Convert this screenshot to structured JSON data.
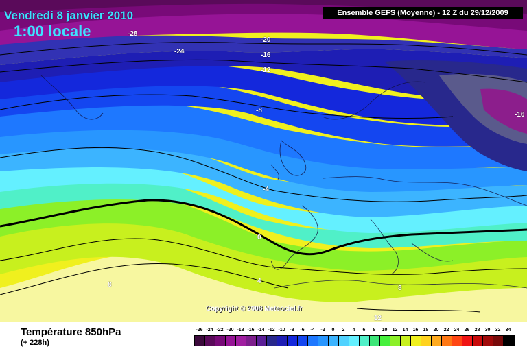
{
  "header": {
    "date": "Vendredi 8 janvier 2010",
    "time": "1:00 locale",
    "model": "Ensemble GEFS (Moyenne)  - 12 Z du 29/12/2009"
  },
  "copyright": "Copyright © 2008 Meteociel.fr",
  "isotherm_labels": [
    "-28",
    "-24",
    "-20",
    "-16",
    "-12",
    "-8",
    "-16",
    "-4",
    "0",
    "4",
    "8",
    "8",
    "12"
  ],
  "footer": {
    "title": "Température 850hPa",
    "subtitle": "(+ 228h)"
  },
  "legend": {
    "labels": [
      "-26",
      "-24",
      "-22",
      "-20",
      "-18",
      "-16",
      "-14",
      "-12",
      "-10",
      "-8",
      "-6",
      "-4",
      "-2",
      "0",
      "2",
      "4",
      "6",
      "8",
      "10",
      "12",
      "14",
      "16",
      "18",
      "20",
      "22",
      "24",
      "26",
      "28",
      "30",
      "32",
      "34"
    ],
    "colors": [
      "#3c0a3c",
      "#5a0a5a",
      "#780a78",
      "#961496",
      "#a01ea0",
      "#7d1e8c",
      "#5a1e96",
      "#28288c",
      "#1e1eb4",
      "#1428dc",
      "#1446f0",
      "#1e78ff",
      "#2896ff",
      "#3cb4ff",
      "#50d2ff",
      "#64f0ff",
      "#50f0c8",
      "#3ce678",
      "#46f03c",
      "#8cf028",
      "#c8f01e",
      "#f0f01e",
      "#ffd21e",
      "#ffaa1e",
      "#ff7814",
      "#ff4614",
      "#f01414",
      "#c80a0a",
      "#a00a0a",
      "#780a0a",
      "#000000"
    ]
  }
}
